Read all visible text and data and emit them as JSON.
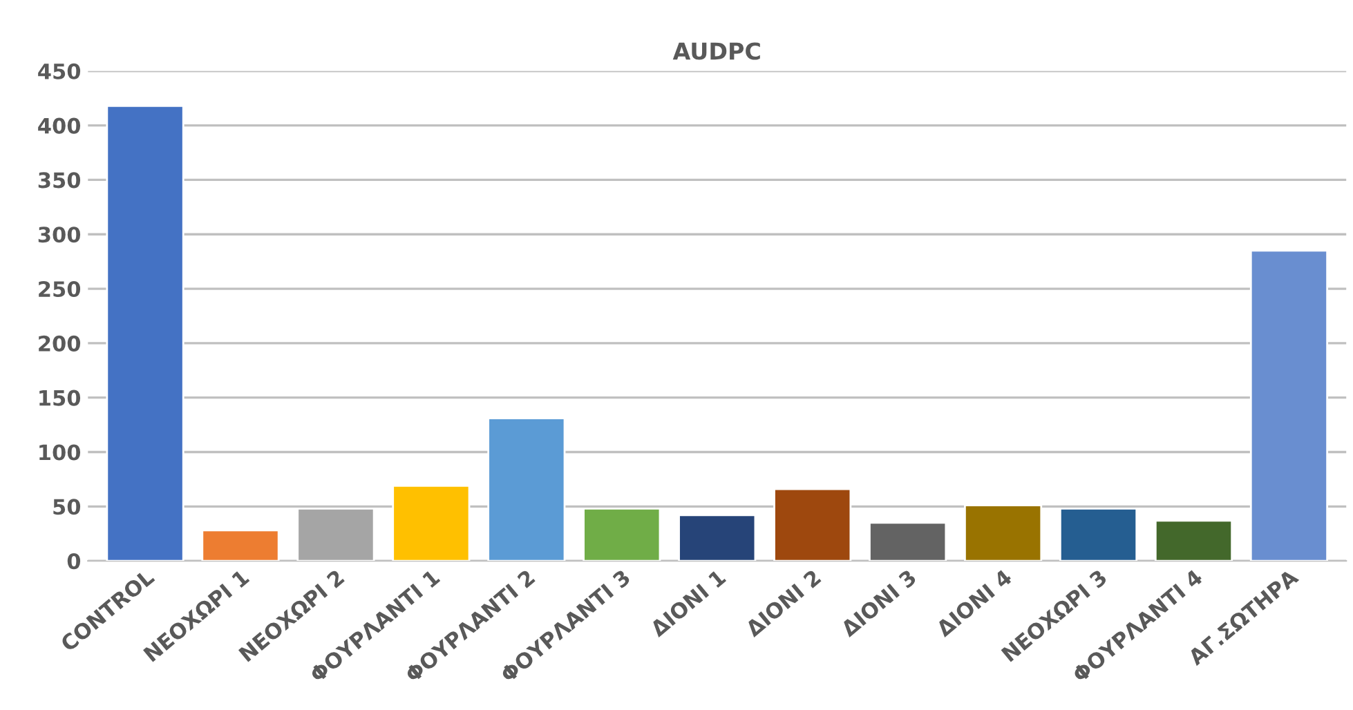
{
  "chart_data": {
    "type": "bar",
    "title": "AUDPC",
    "categories": [
      "CONTROL",
      "ΝΕΟΧΩΡΙ 1",
      "ΝΕΟΧΩΡΙ 2",
      "ΦΟΥΡΛΑΝΤΙ 1",
      "ΦΟΥΡΛΑΝΤΙ 2",
      "ΦΟΥΡΛΑΝΤΙ 3",
      "ΔΙΟΝΙ 1",
      "ΔΙΟΝΙ 2",
      "ΔΙΟΝΙ 3",
      "ΔΙΟΝΙ 4",
      "ΝΕΟΧΩΡΙ 3",
      "ΦΟΥΡΛΑΝΤΙ 4",
      "ΑΓ.ΣΩΤΗΡΑ"
    ],
    "values": [
      418,
      28,
      48,
      69,
      131,
      48,
      42,
      66,
      35,
      51,
      48,
      37,
      285
    ],
    "colors": [
      "#4472c4",
      "#ed7d31",
      "#a5a5a5",
      "#ffc000",
      "#5b9bd5",
      "#70ad47",
      "#264478",
      "#9e480e",
      "#636363",
      "#997300",
      "#255e91",
      "#43682b",
      "#698ed0"
    ],
    "ylim": [
      0,
      450
    ],
    "yticks": [
      0,
      50,
      100,
      150,
      200,
      250,
      300,
      350,
      400,
      450
    ],
    "grid": "y"
  }
}
